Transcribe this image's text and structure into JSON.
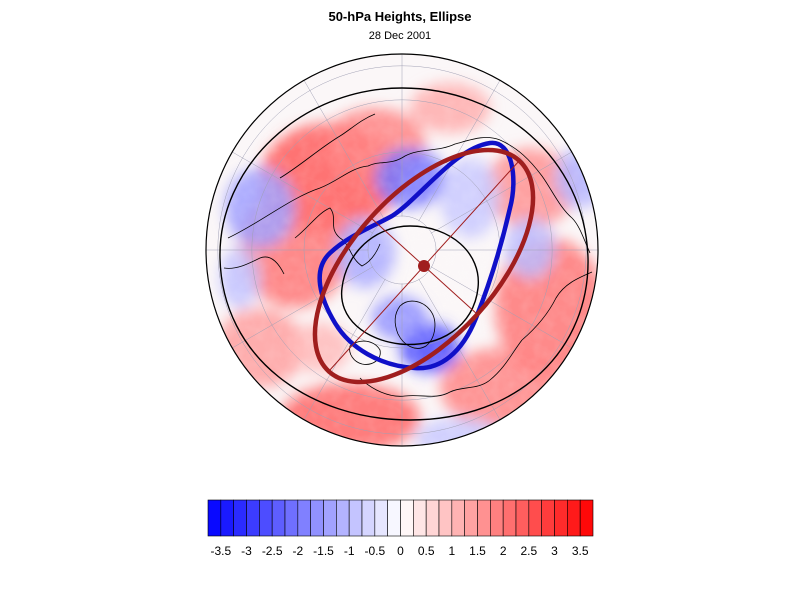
{
  "title": "50-hPa Heights, Ellipse",
  "subtitle": "28 Dec 2001",
  "colors": {
    "anomaly_min": "#0000ff",
    "anomaly_mid": "#ffffff",
    "anomaly_max": "#ff0000",
    "contour_blue": "#1010c8",
    "ellipse": "#a01e1e",
    "coastline": "#000000",
    "graticule": "#a0a0b4"
  },
  "map": {
    "projection": "north-polar-orthographic",
    "features": [
      "anomaly-shading",
      "coastlines",
      "graticule",
      "height-contours",
      "vortex-edge-contour",
      "fitted-ellipse",
      "ellipse-axes",
      "ellipse-center"
    ]
  },
  "colorbar": {
    "orientation": "horizontal",
    "levels": [
      -3.75,
      -3.5,
      -3.25,
      -3,
      -2.75,
      -2.5,
      -2.25,
      -2,
      -1.75,
      -1.5,
      -1.25,
      -1,
      -0.75,
      -0.5,
      -0.25,
      0,
      0.25,
      0.5,
      0.75,
      1,
      1.25,
      1.5,
      1.75,
      2,
      2.25,
      2.5,
      2.75,
      3,
      3.25,
      3.5,
      3.75
    ],
    "tick_labels": [
      "-3.5",
      "-3",
      "-2.5",
      "-2",
      "-1.5",
      "-1",
      "-0.5",
      "0",
      "0.5",
      "1",
      "1.5",
      "2",
      "2.5",
      "3",
      "3.5"
    ],
    "tick_values": [
      -3.5,
      -3,
      -2.5,
      -2,
      -1.5,
      -1,
      -0.5,
      0,
      0.5,
      1,
      1.5,
      2,
      2.5,
      3,
      3.5
    ]
  }
}
